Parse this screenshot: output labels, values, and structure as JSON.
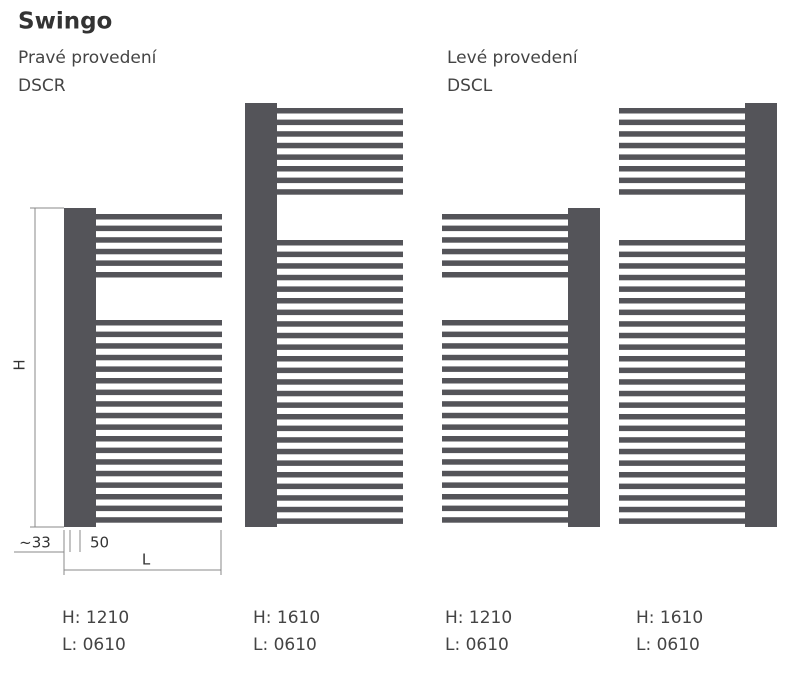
{
  "header": {
    "title": "Swingo"
  },
  "versions": [
    {
      "label": "Pravé provedení",
      "code": "DSCR"
    },
    {
      "label": "Levé provedení",
      "code": "DSCL"
    }
  ],
  "dimensions": {
    "height": "H",
    "offset": "~33",
    "spacing": "50",
    "length": "L"
  },
  "models": [
    {
      "h": "H: 1210",
      "l": "L: 0610"
    },
    {
      "h": "H: 1610",
      "l": "L: 0610"
    },
    {
      "h": "H: 1210",
      "l": "L: 0610"
    },
    {
      "h": "H: 1610",
      "l": "L: 0610"
    }
  ]
}
